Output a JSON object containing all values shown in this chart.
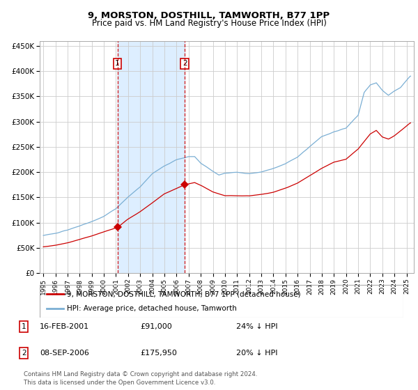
{
  "title": "9, MORSTON, DOSTHILL, TAMWORTH, B77 1PP",
  "subtitle": "Price paid vs. HM Land Registry's House Price Index (HPI)",
  "legend_line1": "9, MORSTON, DOSTHILL, TAMWORTH, B77 1PP (detached house)",
  "legend_line2": "HPI: Average price, detached house, Tamworth",
  "sale1_date": "16-FEB-2001",
  "sale1_price": 91000,
  "sale1_label": "24% ↓ HPI",
  "sale2_date": "08-SEP-2006",
  "sale2_price": 175950,
  "sale2_label": "20% ↓ HPI",
  "footnote": "Contains HM Land Registry data © Crown copyright and database right 2024.\nThis data is licensed under the Open Government Licence v3.0.",
  "hpi_color": "#7bafd4",
  "price_color": "#cc0000",
  "shading_color": "#ddeeff",
  "background_color": "#ffffff",
  "grid_color": "#cccccc",
  "ylim": [
    0,
    460000
  ],
  "sale1_x": 2001.12,
  "sale2_x": 2006.69,
  "xmin": 1994.7,
  "xmax": 2025.6,
  "hpi_anchors_x": [
    1995,
    1996,
    1997,
    1998,
    1999,
    2000,
    2001,
    2002,
    2003,
    2004,
    2005,
    2006,
    2007,
    2007.5,
    2008,
    2009,
    2009.5,
    2010,
    2011,
    2012,
    2013,
    2014,
    2015,
    2016,
    2017,
    2018,
    2019,
    2020,
    2021,
    2021.5,
    2022,
    2022.5,
    2023,
    2023.5,
    2024,
    2024.5,
    2025.3
  ],
  "hpi_anchors_y": [
    74000,
    78000,
    84000,
    92000,
    100000,
    110000,
    125000,
    148000,
    168000,
    195000,
    210000,
    222000,
    228000,
    228000,
    215000,
    200000,
    192000,
    196000,
    198000,
    195000,
    198000,
    205000,
    215000,
    228000,
    248000,
    268000,
    278000,
    285000,
    310000,
    355000,
    370000,
    375000,
    360000,
    350000,
    358000,
    365000,
    388000
  ],
  "prop_anchors_x": [
    1995,
    1996,
    1997,
    1998,
    1999,
    2000,
    2001.12,
    2002,
    2003,
    2004,
    2005,
    2006.69,
    2007.5,
    2008,
    2009,
    2010,
    2011,
    2012,
    2013,
    2014,
    2015,
    2016,
    2017,
    2018,
    2019,
    2020,
    2021,
    2022,
    2022.5,
    2023,
    2023.5,
    2024,
    2025.3
  ],
  "prop_anchors_y": [
    52000,
    55000,
    60000,
    67000,
    74000,
    82000,
    91000,
    107000,
    122000,
    140000,
    158000,
    175950,
    180000,
    175000,
    162000,
    155000,
    155000,
    155000,
    158000,
    162000,
    170000,
    180000,
    195000,
    210000,
    222000,
    228000,
    248000,
    278000,
    285000,
    272000,
    268000,
    275000,
    300000
  ]
}
